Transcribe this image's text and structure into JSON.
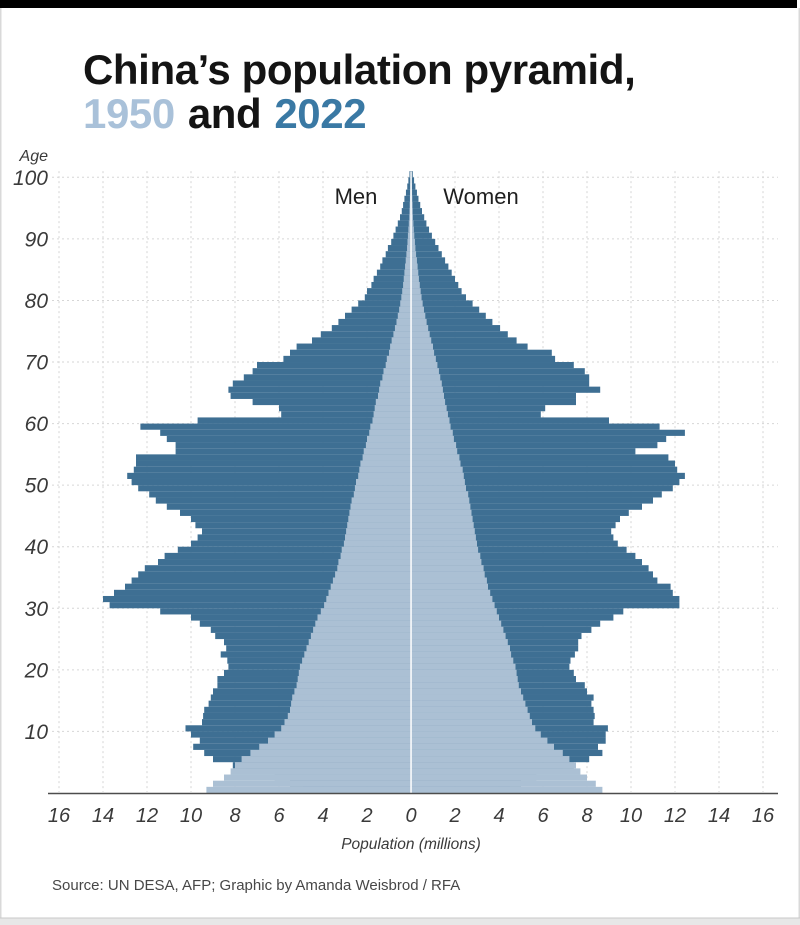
{
  "header": {
    "title_line1": "China’s population pyramid,",
    "year_1950": "1950",
    "conj": "and",
    "year_2022": "2022"
  },
  "labels": {
    "age_axis": "Age",
    "men": "Men",
    "women": "Women",
    "population_axis": "Population (millions)"
  },
  "source_line": "Source: UN DESA, AFP; Graphic by Amanda Weisbrod / RFA",
  "colors": {
    "bar_2022": "#3e6f93",
    "bar_1950": "#abc0d4",
    "title_1950": "#a9c1d9",
    "title_2022": "#3a79a4",
    "grid": "#d6d6d6",
    "axis_line": "#4d4d4d",
    "center_line": "#ffffff",
    "top_bar": "#000000",
    "bottom_strip": "#e7e7e7",
    "edge_border": "#d9d9d9"
  },
  "chart_data": {
    "type": "bar",
    "subtype": "population-pyramid",
    "title": "China's population pyramid, 1950 and 2022",
    "xlabel": "Population (millions)",
    "ylabel": "Age",
    "xlim": [
      -16,
      16
    ],
    "ylim": [
      0,
      101
    ],
    "grid": true,
    "legend_position": "title-inline",
    "x_tick_labels": [
      "16",
      "14",
      "12",
      "10",
      "8",
      "6",
      "4",
      "2",
      "0",
      "2",
      "4",
      "6",
      "8",
      "10",
      "12",
      "14",
      "16"
    ],
    "y_tick_values": [
      10,
      20,
      30,
      40,
      50,
      60,
      70,
      80,
      90,
      100
    ],
    "ages": "single years 0–100",
    "series": [
      {
        "name": "Men 2022",
        "year": 2022,
        "side": "left",
        "color_key": "bar_2022",
        "values": [
          4.9,
          5.5,
          6.2,
          7.5,
          8.1,
          9.0,
          9.4,
          9.9,
          9.6,
          10.0,
          10.25,
          9.5,
          9.45,
          9.4,
          9.2,
          9.1,
          9.0,
          8.8,
          8.8,
          8.5,
          8.3,
          8.35,
          8.65,
          8.4,
          8.5,
          8.9,
          9.1,
          9.6,
          10.0,
          11.4,
          13.7,
          14.0,
          13.5,
          13.0,
          12.7,
          12.4,
          12.1,
          11.5,
          11.2,
          10.6,
          10.0,
          9.7,
          9.5,
          9.8,
          10.0,
          10.5,
          11.1,
          11.6,
          11.9,
          12.4,
          12.7,
          12.9,
          12.6,
          12.5,
          12.5,
          10.7,
          10.7,
          11.1,
          11.4,
          12.3,
          9.7,
          5.9,
          6.0,
          7.2,
          8.2,
          8.3,
          8.1,
          7.6,
          7.2,
          7.0,
          5.8,
          5.5,
          5.2,
          4.5,
          4.1,
          3.6,
          3.3,
          3.0,
          2.7,
          2.4,
          2.1,
          2.0,
          1.8,
          1.7,
          1.55,
          1.4,
          1.3,
          1.15,
          1.05,
          0.9,
          0.8,
          0.7,
          0.6,
          0.5,
          0.42,
          0.36,
          0.3,
          0.23,
          0.17,
          0.12,
          0.07
        ]
      },
      {
        "name": "Women 2022",
        "year": 2022,
        "side": "right",
        "color_key": "bar_2022",
        "values": [
          4.5,
          5.0,
          5.7,
          6.9,
          7.4,
          8.1,
          8.7,
          8.5,
          8.85,
          8.85,
          8.95,
          8.3,
          8.35,
          8.3,
          8.2,
          8.3,
          8.0,
          7.9,
          7.5,
          7.4,
          7.2,
          7.25,
          7.45,
          7.6,
          7.6,
          7.75,
          8.2,
          8.6,
          9.2,
          9.65,
          12.2,
          12.2,
          11.9,
          11.8,
          11.2,
          11.0,
          10.8,
          10.5,
          10.2,
          9.8,
          9.4,
          9.2,
          9.1,
          9.3,
          9.5,
          9.9,
          10.5,
          11.0,
          11.4,
          11.9,
          12.2,
          12.45,
          12.1,
          12.0,
          11.7,
          10.2,
          11.2,
          11.6,
          12.45,
          11.3,
          9.0,
          5.9,
          6.1,
          7.5,
          7.5,
          8.6,
          8.1,
          8.1,
          7.9,
          7.4,
          6.55,
          6.4,
          5.3,
          4.8,
          4.4,
          4.05,
          3.7,
          3.4,
          3.1,
          2.8,
          2.5,
          2.3,
          2.15,
          2.0,
          1.85,
          1.7,
          1.55,
          1.4,
          1.25,
          1.1,
          0.95,
          0.82,
          0.7,
          0.6,
          0.5,
          0.42,
          0.34,
          0.27,
          0.2,
          0.14,
          0.08
        ]
      },
      {
        "name": "Men 1950",
        "year": 1950,
        "side": "left",
        "color_key": "bar_1950",
        "values": [
          9.3,
          9.0,
          8.5,
          8.2,
          8.0,
          7.7,
          7.3,
          6.9,
          6.5,
          6.2,
          5.9,
          5.75,
          5.6,
          5.5,
          5.45,
          5.4,
          5.3,
          5.2,
          5.15,
          5.1,
          5.05,
          4.95,
          4.85,
          4.75,
          4.65,
          4.55,
          4.45,
          4.35,
          4.25,
          4.1,
          3.95,
          3.85,
          3.75,
          3.65,
          3.55,
          3.45,
          3.35,
          3.3,
          3.2,
          3.15,
          3.05,
          3.0,
          2.95,
          2.9,
          2.85,
          2.8,
          2.75,
          2.7,
          2.6,
          2.55,
          2.5,
          2.4,
          2.35,
          2.3,
          2.2,
          2.15,
          2.05,
          2.0,
          1.9,
          1.85,
          1.75,
          1.7,
          1.65,
          1.6,
          1.5,
          1.45,
          1.4,
          1.3,
          1.25,
          1.15,
          1.1,
          1.0,
          0.95,
          0.88,
          0.8,
          0.73,
          0.66,
          0.6,
          0.54,
          0.49,
          0.44,
          0.4,
          0.36,
          0.33,
          0.3,
          0.27,
          0.24,
          0.21,
          0.18,
          0.16,
          0.14,
          0.12,
          0.1,
          0.08,
          0.07,
          0.06,
          0.05,
          0.04,
          0.03,
          0.025,
          0.02
        ]
      },
      {
        "name": "Women 1950",
        "year": 1950,
        "side": "right",
        "color_key": "bar_1950",
        "values": [
          8.7,
          8.4,
          8.0,
          7.7,
          7.5,
          7.2,
          6.9,
          6.5,
          6.2,
          5.9,
          5.65,
          5.5,
          5.4,
          5.3,
          5.2,
          5.1,
          5.0,
          4.9,
          4.85,
          4.8,
          4.75,
          4.65,
          4.55,
          4.5,
          4.4,
          4.3,
          4.2,
          4.1,
          4.0,
          3.9,
          3.8,
          3.7,
          3.6,
          3.5,
          3.45,
          3.35,
          3.3,
          3.2,
          3.15,
          3.05,
          3.0,
          2.95,
          2.9,
          2.85,
          2.8,
          2.75,
          2.7,
          2.65,
          2.6,
          2.5,
          2.45,
          2.4,
          2.35,
          2.25,
          2.2,
          2.1,
          2.05,
          1.95,
          1.9,
          1.8,
          1.75,
          1.68,
          1.62,
          1.55,
          1.5,
          1.45,
          1.4,
          1.33,
          1.27,
          1.2,
          1.13,
          1.05,
          1.0,
          0.92,
          0.85,
          0.78,
          0.71,
          0.65,
          0.59,
          0.53,
          0.48,
          0.44,
          0.4,
          0.36,
          0.33,
          0.3,
          0.27,
          0.23,
          0.2,
          0.18,
          0.15,
          0.13,
          0.11,
          0.09,
          0.08,
          0.07,
          0.06,
          0.05,
          0.04,
          0.03,
          0.02
        ]
      }
    ]
  }
}
